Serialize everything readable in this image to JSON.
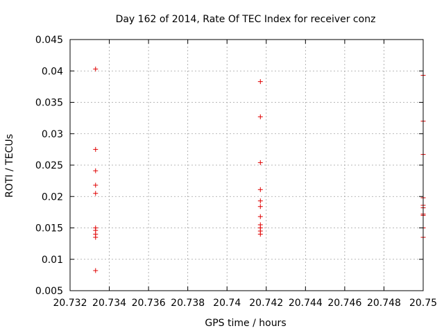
{
  "chart_data": {
    "type": "scatter",
    "title": "Day 162 of 2014, Rate Of TEC Index for receiver conz",
    "xlabel": "GPS time / hours",
    "ylabel": "ROTI / TECUs",
    "xlim": [
      20.732,
      20.75
    ],
    "ylim": [
      0.005,
      0.045
    ],
    "xticks": [
      20.732,
      20.734,
      20.736,
      20.738,
      20.74,
      20.742,
      20.744,
      20.746,
      20.748,
      20.75
    ],
    "xtick_labels": [
      "20.732",
      "20.734",
      "20.736",
      "20.738",
      "20.74",
      "20.742",
      "20.744",
      "20.746",
      "20.748",
      "20.75"
    ],
    "yticks": [
      0.005,
      0.01,
      0.015,
      0.02,
      0.025,
      0.03,
      0.035,
      0.04,
      0.045
    ],
    "ytick_labels": [
      "0.005",
      "0.01",
      "0.015",
      "0.02",
      "0.025",
      "0.03",
      "0.035",
      "0.04",
      "0.045"
    ],
    "grid": true,
    "marker": "+",
    "color": "#e00000",
    "series": [
      {
        "name": "ROTI",
        "points": [
          [
            20.7333,
            0.0403
          ],
          [
            20.7333,
            0.0275
          ],
          [
            20.7333,
            0.0241
          ],
          [
            20.7333,
            0.0218
          ],
          [
            20.7333,
            0.0205
          ],
          [
            20.7333,
            0.015
          ],
          [
            20.7333,
            0.0146
          ],
          [
            20.7333,
            0.014
          ],
          [
            20.7333,
            0.0135
          ],
          [
            20.7333,
            0.0082
          ],
          [
            20.7417,
            0.0383
          ],
          [
            20.7417,
            0.0327
          ],
          [
            20.7417,
            0.0254
          ],
          [
            20.7417,
            0.0211
          ],
          [
            20.7417,
            0.0193
          ],
          [
            20.7417,
            0.0184
          ],
          [
            20.7417,
            0.0168
          ],
          [
            20.7417,
            0.0155
          ],
          [
            20.7417,
            0.015
          ],
          [
            20.7417,
            0.0145
          ],
          [
            20.7417,
            0.014
          ],
          [
            20.75,
            0.0393
          ],
          [
            20.75,
            0.032
          ],
          [
            20.75,
            0.0267
          ],
          [
            20.75,
            0.0198
          ],
          [
            20.75,
            0.0186
          ],
          [
            20.75,
            0.0182
          ],
          [
            20.75,
            0.0172
          ],
          [
            20.75,
            0.017
          ],
          [
            20.75,
            0.015
          ],
          [
            20.75,
            0.0135
          ]
        ]
      }
    ]
  }
}
